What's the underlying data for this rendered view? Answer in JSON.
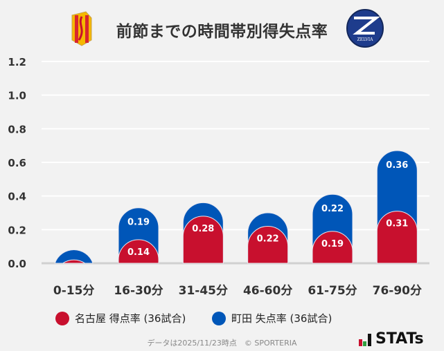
{
  "title": "前節までの時間帯別得失点率",
  "logos": {
    "left": "名古屋 crest",
    "right": "ZELVIA"
  },
  "chart_data": {
    "type": "bar",
    "stacked": true,
    "categories": [
      "0-15分",
      "16-30分",
      "31-45分",
      "46-60分",
      "61-75分",
      "76-90分"
    ],
    "series": [
      {
        "name": "名古屋 得点率 (36試合)",
        "color": "#c8102e",
        "values": [
          0.02,
          0.14,
          0.28,
          0.22,
          0.19,
          0.31
        ],
        "labels": [
          "",
          "0.14",
          "0.28",
          "0.22",
          "0.19",
          "0.31"
        ]
      },
      {
        "name": "町田 失点率 (36試合)",
        "color": "#0056b8",
        "values": [
          0.06,
          0.19,
          0.08,
          0.08,
          0.22,
          0.36
        ],
        "labels": [
          "",
          "0.19",
          "",
          "",
          "0.22",
          "0.36"
        ]
      }
    ],
    "yticks": [
      "0.0",
      "0.2",
      "0.4",
      "0.6",
      "0.8",
      "1.0",
      "1.2"
    ],
    "ylim": [
      0,
      1.2
    ],
    "grid": true
  },
  "footer": "データは2025/11/23時点　© SPORTERIA",
  "brand": "STATs"
}
